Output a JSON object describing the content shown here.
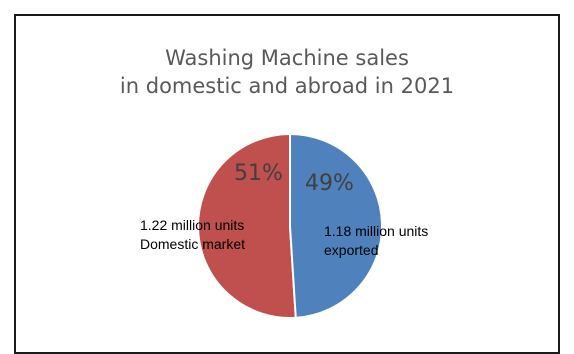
{
  "chart_data": {
    "type": "pie",
    "title": [
      "Washing Machine sales",
      "in domestic and abroad in 2021"
    ],
    "slices": [
      {
        "percent_label": "51%",
        "value": 51,
        "label_lines": [
          "1.22 million units",
          "Domestic market"
        ],
        "color": "#C0504D"
      },
      {
        "percent_label": "49%",
        "value": 49,
        "label_lines": [
          "1.18 million units",
          "exported"
        ],
        "color": "#4F81BD"
      }
    ],
    "legend": "none"
  }
}
